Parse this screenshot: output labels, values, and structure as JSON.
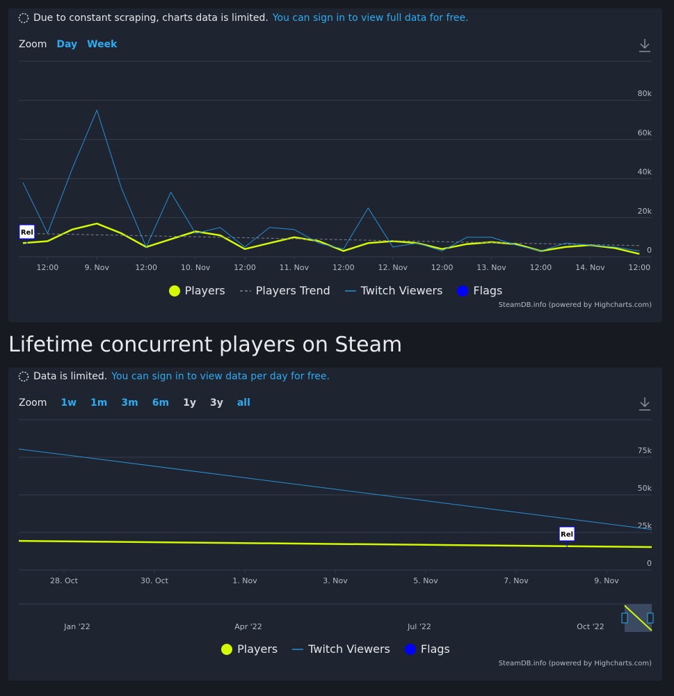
{
  "heading": "Lifetime concurrent players on Steam",
  "chart_data": [
    {
      "type": "line",
      "notice": "Due to constant scraping, charts data is limited.",
      "notice_link": "You can sign in to view full data for free.",
      "zoom_label": "Zoom",
      "zoom_buttons": [
        "Day",
        "Week"
      ],
      "credit": "SteamDB.info (powered by Highcharts.com)",
      "x": [
        "8 Nov 06:00",
        "8 Nov 12:00",
        "8 Nov 18:00",
        "9 Nov 00:00",
        "9 Nov 06:00",
        "9 Nov 12:00",
        "9 Nov 18:00",
        "10 Nov 00:00",
        "10 Nov 06:00",
        "10 Nov 12:00",
        "10 Nov 18:00",
        "11 Nov 00:00",
        "11 Nov 06:00",
        "11 Nov 12:00",
        "11 Nov 18:00",
        "12 Nov 00:00",
        "12 Nov 06:00",
        "12 Nov 12:00",
        "12 Nov 18:00",
        "13 Nov 00:00",
        "13 Nov 06:00",
        "13 Nov 12:00",
        "13 Nov 18:00",
        "14 Nov 00:00",
        "14 Nov 06:00",
        "14 Nov 12:00"
      ],
      "xlim": [
        "8 Nov 05:00",
        "14 Nov 15:00"
      ],
      "xticks": [
        {
          "value": "8 Nov 12:00",
          "label": "12:00"
        },
        {
          "value": "9 Nov 00:00",
          "label": "9. Nov"
        },
        {
          "value": "9 Nov 12:00",
          "label": "12:00"
        },
        {
          "value": "10 Nov 00:00",
          "label": "10. Nov"
        },
        {
          "value": "10 Nov 12:00",
          "label": "12:00"
        },
        {
          "value": "11 Nov 00:00",
          "label": "11. Nov"
        },
        {
          "value": "11 Nov 12:00",
          "label": "12:00"
        },
        {
          "value": "12 Nov 00:00",
          "label": "12. Nov"
        },
        {
          "value": "12 Nov 12:00",
          "label": "12:00"
        },
        {
          "value": "13 Nov 00:00",
          "label": "13. Nov"
        },
        {
          "value": "13 Nov 12:00",
          "label": "12:00"
        },
        {
          "value": "14 Nov 00:00",
          "label": "14. Nov"
        },
        {
          "value": "14 Nov 12:00",
          "label": "12:00"
        }
      ],
      "ylim": [
        0,
        100000
      ],
      "yticks": [
        0,
        {
          "value": 20000,
          "label": "20k"
        },
        {
          "value": 40000,
          "label": "40k"
        },
        {
          "value": 60000,
          "label": "60k"
        },
        {
          "value": 80000,
          "label": "80k"
        }
      ],
      "grid": true,
      "series": [
        {
          "name": "Players",
          "color": "#d4fa00",
          "width": 2.5,
          "legend_symbol": "circle",
          "values": [
            7000,
            8000,
            14000,
            17000,
            12000,
            5000,
            9000,
            13000,
            11000,
            4000,
            7000,
            10000,
            8000,
            3000,
            7000,
            8000,
            7000,
            4000,
            6500,
            7500,
            6500,
            3000,
            5000,
            6000,
            4500,
            1500
          ]
        },
        {
          "name": "Players Trend",
          "color": "#7d838d",
          "width": 1,
          "dash": true,
          "legend_symbol": "line",
          "values": [
            12000,
            11750,
            11500,
            11250,
            11000,
            10750,
            10500,
            10250,
            10000,
            9750,
            9500,
            9250,
            9000,
            8750,
            8500,
            8250,
            8000,
            7750,
            7500,
            7250,
            7000,
            6750,
            6500,
            6250,
            6000,
            5750
          ]
        },
        {
          "name": "Twitch Viewers",
          "color": "#2a8fd4",
          "width": 1,
          "legend_symbol": "line",
          "values": [
            38000,
            12000,
            45000,
            75000,
            35000,
            5000,
            33000,
            12000,
            15000,
            5000,
            15000,
            14000,
            7000,
            4000,
            25000,
            5000,
            7000,
            3000,
            10000,
            10000,
            6000,
            3000,
            7000,
            6000,
            5000,
            3000
          ]
        }
      ],
      "flags": {
        "name": "Flags",
        "color": "#0000ff",
        "x": [
          "8 Nov 07:00"
        ],
        "labels": [
          "Rel"
        ]
      }
    },
    {
      "type": "line",
      "notice": "Data is limited.",
      "notice_link": "You can sign in to view data per day for free.",
      "zoom_label": "Zoom",
      "zoom_buttons": [
        "1w",
        "1m",
        "3m",
        "6m",
        "1y",
        "3y",
        "all"
      ],
      "credit": "SteamDB.info (powered by Highcharts.com)",
      "x": [
        "27 Oct 00:00",
        "10 Nov 00:00"
      ],
      "xlim": [
        "27 Oct 00:00",
        "10 Nov 00:00"
      ],
      "xticks": [
        {
          "value": "28 Oct 00:00",
          "label": "28. Oct"
        },
        {
          "value": "30 Oct 00:00",
          "label": "30. Oct"
        },
        {
          "value": "1 Nov 00:00",
          "label": "1. Nov"
        },
        {
          "value": "3 Nov 00:00",
          "label": "3. Nov"
        },
        {
          "value": "5 Nov 00:00",
          "label": "5. Nov"
        },
        {
          "value": "7 Nov 00:00",
          "label": "7. Nov"
        },
        {
          "value": "9 Nov 00:00",
          "label": "9. Nov"
        }
      ],
      "ylim": [
        0,
        100000
      ],
      "yticks": [
        0,
        {
          "value": 25000,
          "label": "25k"
        },
        {
          "value": 50000,
          "label": "50k"
        },
        {
          "value": 75000,
          "label": "75k"
        }
      ],
      "grid": true,
      "series": [
        {
          "name": "Players",
          "color": "#d4fa00",
          "width": 2.5,
          "legend_symbol": "circle",
          "values": [
            19400,
            15300
          ]
        },
        {
          "name": "Twitch Viewers",
          "color": "#2a8fd4",
          "width": 1,
          "legend_symbol": "line",
          "values": [
            80500,
            27000
          ]
        }
      ],
      "flags": {
        "name": "Flags",
        "color": "#0000ff",
        "x": [
          "8 Nov 03:00"
        ],
        "labels": [
          "Rel"
        ]
      },
      "navigator_ticks": [
        "Jan '22",
        "Apr '22",
        "Jul '22",
        "Oct '22"
      ]
    }
  ]
}
